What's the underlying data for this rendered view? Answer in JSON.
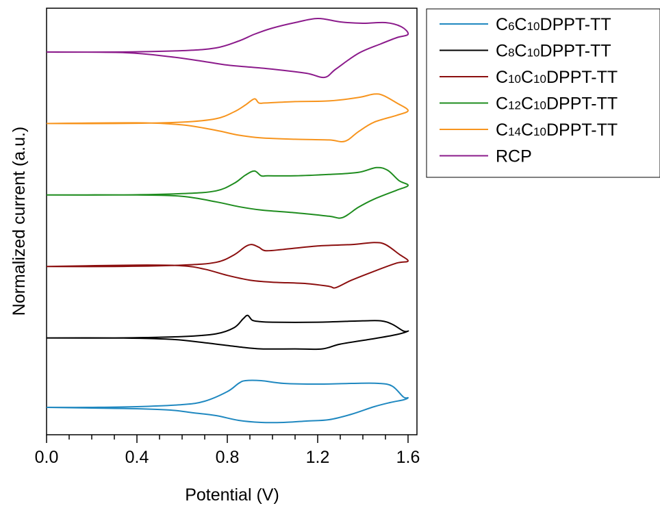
{
  "chart_data": {
    "type": "line",
    "xlabel": "Potential (V)",
    "ylabel": "Normalized current (a.u.)",
    "xlim": [
      0.0,
      1.6
    ],
    "x_ticks": [
      "0.0",
      "0.4",
      "0.8",
      "1.2",
      "1.6"
    ],
    "y_ticks_shown": false,
    "grid": false,
    "legend_position": "outside-top-right",
    "series": [
      {
        "name": "C6C10DPPT-TT",
        "label_parts": [
          [
            "C",
            ""
          ],
          [
            "6",
            "sub"
          ],
          [
            "C",
            ""
          ],
          [
            "10",
            "sub"
          ],
          [
            "DPPT-TT",
            ""
          ]
        ],
        "color": "#1f88c0",
        "x": [
          0.0,
          0.2,
          0.4,
          0.6,
          0.7,
          0.8,
          0.85,
          0.88,
          0.95,
          1.05,
          1.2,
          1.35,
          1.47,
          1.53,
          1.58,
          1.6,
          1.58,
          1.52,
          1.45,
          1.35,
          1.25,
          1.15,
          1.05,
          0.95,
          0.85,
          0.75,
          0.65,
          0.55,
          0.4,
          0.2,
          0.0
        ],
        "y": [
          0.03,
          0.03,
          0.04,
          0.07,
          0.12,
          0.26,
          0.38,
          0.42,
          0.42,
          0.38,
          0.37,
          0.38,
          0.38,
          0.34,
          0.18,
          0.17,
          0.14,
          0.1,
          0.04,
          -0.07,
          -0.15,
          -0.17,
          -0.19,
          -0.19,
          -0.16,
          -0.09,
          -0.05,
          -0.01,
          0.01,
          0.02,
          0.03
        ],
        "offset": 0
      },
      {
        "name": "C8C10DPPT-TT",
        "label_parts": [
          [
            "C",
            ""
          ],
          [
            "8",
            "sub"
          ],
          [
            "C",
            ""
          ],
          [
            "10",
            "sub"
          ],
          [
            "DPPT-TT",
            ""
          ]
        ],
        "color": "#000000",
        "x": [
          0.0,
          0.3,
          0.6,
          0.75,
          0.83,
          0.87,
          0.89,
          0.91,
          0.94,
          1.0,
          1.2,
          1.4,
          1.48,
          1.53,
          1.58,
          1.6,
          1.55,
          1.45,
          1.3,
          1.22,
          1.1,
          0.95,
          0.85,
          0.7,
          0.55,
          0.3,
          0.0
        ],
        "y": [
          0.0,
          0.0,
          0.02,
          0.06,
          0.15,
          0.28,
          0.33,
          0.26,
          0.24,
          0.23,
          0.23,
          0.25,
          0.25,
          0.2,
          0.1,
          0.1,
          0.05,
          -0.01,
          -0.09,
          -0.16,
          -0.16,
          -0.16,
          -0.13,
          -0.07,
          -0.02,
          0.0,
          0.0
        ],
        "offset": 1
      },
      {
        "name": "C10C10DPPT-TT",
        "label_parts": [
          [
            "C",
            ""
          ],
          [
            "10",
            "sub"
          ],
          [
            "C",
            ""
          ],
          [
            "10",
            "sub"
          ],
          [
            "DPPT-TT",
            ""
          ]
        ],
        "color": "#8b0e0e",
        "x": [
          0.0,
          0.3,
          0.6,
          0.75,
          0.83,
          0.88,
          0.91,
          0.94,
          0.97,
          1.05,
          1.2,
          1.35,
          1.45,
          1.5,
          1.56,
          1.6,
          1.55,
          1.45,
          1.35,
          1.28,
          1.25,
          1.15,
          1.0,
          0.9,
          0.8,
          0.7,
          0.6,
          0.4,
          0.0
        ],
        "y": [
          0.0,
          0.0,
          0.02,
          0.06,
          0.17,
          0.29,
          0.32,
          0.28,
          0.23,
          0.25,
          0.3,
          0.32,
          0.35,
          0.32,
          0.18,
          0.08,
          0.05,
          -0.07,
          -0.2,
          -0.31,
          -0.29,
          -0.25,
          -0.23,
          -0.2,
          -0.13,
          -0.04,
          0.01,
          0.02,
          0.0
        ],
        "offset": 2
      },
      {
        "name": "C12C10DPPT-TT",
        "label_parts": [
          [
            "C",
            ""
          ],
          [
            "12",
            "sub"
          ],
          [
            "C",
            ""
          ],
          [
            "10",
            "sub"
          ],
          [
            "DPPT-TT",
            ""
          ]
        ],
        "color": "#1e8c1e",
        "x": [
          0.0,
          0.3,
          0.6,
          0.75,
          0.83,
          0.88,
          0.92,
          0.95,
          0.98,
          1.1,
          1.25,
          1.38,
          1.46,
          1.51,
          1.56,
          1.6,
          1.55,
          1.45,
          1.38,
          1.31,
          1.25,
          1.1,
          0.95,
          0.85,
          0.75,
          0.6,
          0.4,
          0.0
        ],
        "y": [
          0.0,
          0.0,
          0.02,
          0.06,
          0.17,
          0.29,
          0.35,
          0.28,
          0.28,
          0.28,
          0.3,
          0.33,
          0.4,
          0.36,
          0.21,
          0.14,
          0.07,
          -0.06,
          -0.18,
          -0.33,
          -0.31,
          -0.26,
          -0.22,
          -0.17,
          -0.1,
          -0.02,
          0.0,
          0.0
        ],
        "offset": 3
      },
      {
        "name": "C14C10DPPT-TT",
        "label_parts": [
          [
            "C",
            ""
          ],
          [
            "14",
            "sub"
          ],
          [
            "C",
            ""
          ],
          [
            "10",
            "sub"
          ],
          [
            "DPPT-TT",
            ""
          ]
        ],
        "color": "#f7941d",
        "x": [
          0.0,
          0.3,
          0.6,
          0.75,
          0.83,
          0.88,
          0.92,
          0.94,
          0.97,
          1.1,
          1.25,
          1.38,
          1.45,
          1.49,
          1.55,
          1.6,
          1.55,
          1.45,
          1.38,
          1.32,
          1.25,
          1.1,
          0.95,
          0.85,
          0.75,
          0.6,
          0.4,
          0.0
        ],
        "y": [
          0.0,
          0.0,
          0.02,
          0.07,
          0.17,
          0.27,
          0.36,
          0.3,
          0.3,
          0.32,
          0.33,
          0.38,
          0.43,
          0.41,
          0.3,
          0.19,
          0.12,
          0.02,
          -0.12,
          -0.26,
          -0.24,
          -0.23,
          -0.21,
          -0.17,
          -0.1,
          -0.02,
          0.01,
          0.0
        ],
        "offset": 4
      },
      {
        "name": "RCP",
        "label_parts": [
          [
            "RCP",
            ""
          ]
        ],
        "color": "#8b1a8b",
        "x": [
          0.0,
          0.3,
          0.6,
          0.75,
          0.85,
          0.92,
          1.0,
          1.1,
          1.2,
          1.3,
          1.4,
          1.5,
          1.57,
          1.6,
          1.55,
          1.48,
          1.38,
          1.28,
          1.23,
          1.15,
          1.0,
          0.9,
          0.8,
          0.7,
          0.55,
          0.35,
          0.0
        ],
        "y": [
          0.0,
          0.0,
          0.02,
          0.06,
          0.16,
          0.26,
          0.35,
          0.43,
          0.49,
          0.44,
          0.42,
          0.43,
          0.37,
          0.26,
          0.21,
          0.12,
          -0.02,
          -0.25,
          -0.37,
          -0.31,
          -0.25,
          -0.22,
          -0.19,
          -0.14,
          -0.07,
          -0.01,
          0.0
        ],
        "offset": 5
      }
    ]
  }
}
